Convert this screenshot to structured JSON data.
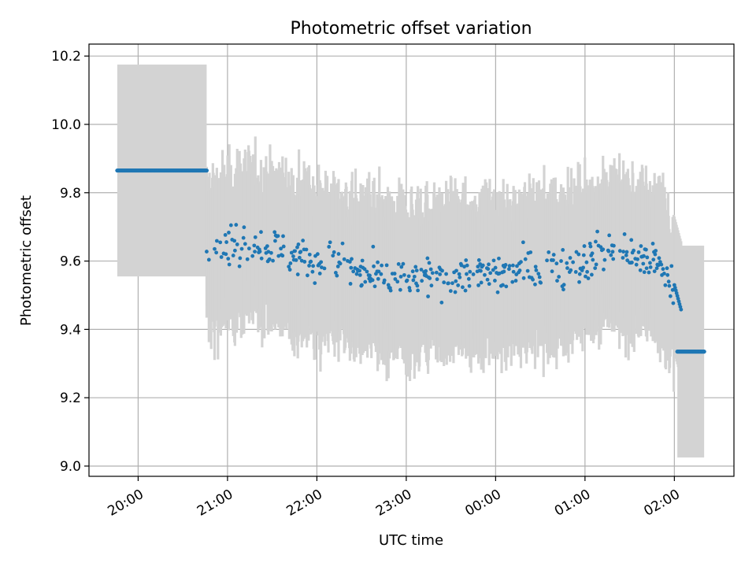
{
  "chart_data": {
    "type": "scatter",
    "title": "Photometric offset variation",
    "xlabel": "UTC time",
    "ylabel": "Photometric offset",
    "x_axis_type": "time",
    "xlim": [
      "19:27",
      "02:40"
    ],
    "ylim": [
      8.97,
      10.235
    ],
    "grid": true,
    "y_ticks": [
      9.0,
      9.2,
      9.4,
      9.6,
      9.8,
      10.0,
      10.2
    ],
    "y_tick_labels": [
      "9.0",
      "9.2",
      "9.4",
      "9.6",
      "9.8",
      "10.0",
      "10.2"
    ],
    "x_ticks": [
      "20:00",
      "21:00",
      "22:00",
      "23:00",
      "00:00",
      "01:00",
      "02:00"
    ],
    "x_tick_labels": [
      "20:00",
      "21:00",
      "22:00",
      "23:00",
      "00:00",
      "01:00",
      "02:00"
    ],
    "colors": {
      "points": "#1f77b4",
      "error_band": "#d3d3d3",
      "grid": "#b0b0b0"
    },
    "series": [
      {
        "segments": [
          {
            "x_start": "19:46",
            "x_end": "20:46",
            "y": 9.865,
            "err": 0.31,
            "style": "constant"
          },
          {
            "x_start": "20:46",
            "x_end": "02:00",
            "style": "noisy",
            "err": 0.2,
            "trend": [
              [
                "20:46",
                9.62
              ],
              [
                "21:15",
                9.66
              ],
              [
                "21:45",
                9.62
              ],
              [
                "22:15",
                9.59
              ],
              [
                "22:45",
                9.54
              ],
              [
                "23:15",
                9.55
              ],
              [
                "23:45",
                9.56
              ],
              [
                "00:15",
                9.57
              ],
              [
                "00:45",
                9.58
              ],
              [
                "01:15",
                9.63
              ],
              [
                "01:45",
                9.61
              ],
              [
                "02:00",
                9.52
              ]
            ]
          },
          {
            "x_start": "02:00",
            "x_end": "02:05",
            "y": 9.45,
            "err": 0.2,
            "style": "transition"
          },
          {
            "x_start": "02:02",
            "x_end": "02:20",
            "y": 9.335,
            "err": 0.31,
            "style": "constant"
          }
        ]
      }
    ]
  }
}
